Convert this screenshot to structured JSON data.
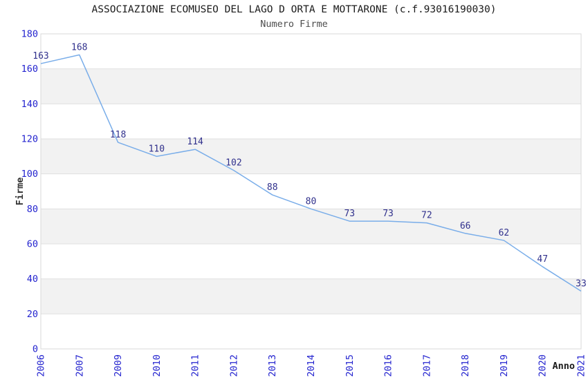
{
  "chart_data": {
    "type": "line",
    "title": "ASSOCIAZIONE ECOMUSEO DEL LAGO D ORTA E MOTTARONE (c.f.93016190030)",
    "subtitle": "Numero Firme",
    "xlabel": "Anno",
    "ylabel": "Firme",
    "categories": [
      "2006",
      "2007",
      "2009",
      "2010",
      "2011",
      "2012",
      "2013",
      "2014",
      "2015",
      "2016",
      "2017",
      "2018",
      "2019",
      "2020",
      "2021"
    ],
    "series": [
      {
        "name": "Numero Firme",
        "values": [
          163,
          168,
          118,
          110,
          114,
          102,
          88,
          80,
          73,
          73,
          72,
          66,
          62,
          47,
          33
        ]
      }
    ],
    "data_labels": [
      "163",
      "168",
      "118",
      "110",
      "114",
      "102",
      "88",
      "80",
      "73",
      "73",
      "72",
      "66",
      "62",
      "47",
      "33"
    ],
    "ylim": [
      0,
      180
    ],
    "ytick_step": 20,
    "y_ticks": [
      0,
      20,
      40,
      60,
      80,
      100,
      120,
      140,
      160,
      180
    ],
    "grid": true,
    "legend": "none",
    "x_labels_rotated_degrees": 90,
    "band_fill_alternate": true,
    "colors": {
      "line": "#79ade9",
      "data_label": "#30308c",
      "tick_label": "#2323cf",
      "axis_title_x": "#1a1a1a",
      "axis_title_y": "#333333",
      "title": "#1a1a1a",
      "subtitle": "#4d4d4d",
      "gridline": "#e0e0e0",
      "band": "#f2f2f2",
      "plot_border": "#d9d9d9",
      "background": "#ffffff"
    }
  }
}
